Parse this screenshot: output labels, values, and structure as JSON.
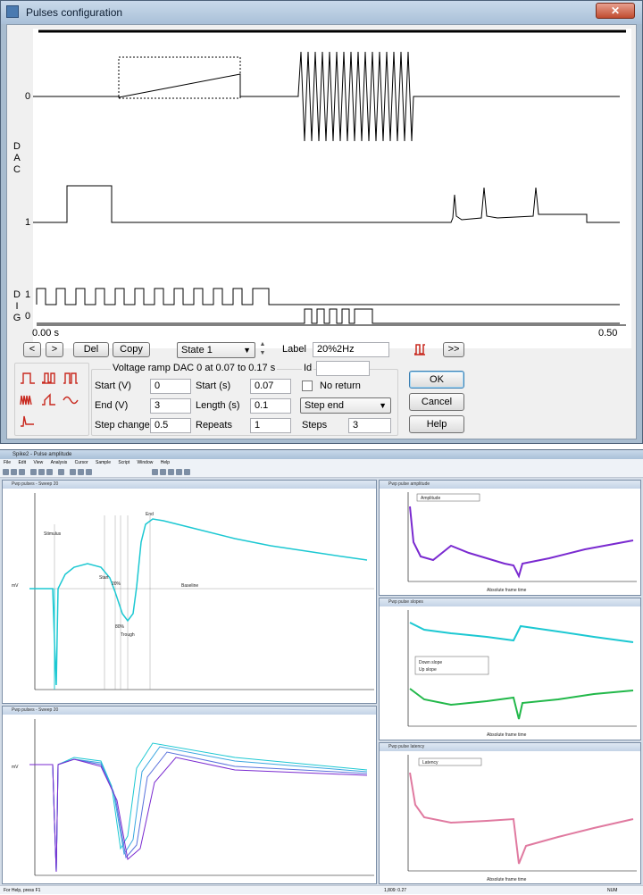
{
  "dialog": {
    "title": "Pulses configuration",
    "close_label": "✕",
    "graph": {
      "dac_axis_letters": [
        "D",
        "A",
        "C"
      ],
      "dig_axis_letters": [
        "D",
        "I",
        "G"
      ],
      "dac0_label": "0",
      "dac1_label": "1",
      "dig1_label": "1",
      "dig0_label": "0",
      "time_start": "0.00 s",
      "time_end": "0.50"
    },
    "nav": {
      "prev_label": "<",
      "next_label": ">",
      "del_label": "Del",
      "copy_label": "Copy",
      "state_value": "State 1",
      "label_caption": "Label",
      "label_value": "20%2Hz",
      "more_label": ">>"
    },
    "description": "Voltage ramp DAC 0 at 0.07 to 0.17 s",
    "id_caption": "Id",
    "id_value": "",
    "params": {
      "start_v_label": "Start (V)",
      "start_v_value": "0",
      "end_v_label": "End (V)",
      "end_v_value": "3",
      "step_change_label": "Step change",
      "step_change_value": "0.5",
      "start_s_label": "Start (s)",
      "start_s_value": "0.07",
      "length_s_label": "Length (s)",
      "length_s_value": "0.1",
      "repeats_label": "Repeats",
      "repeats_value": "1",
      "no_return_label": "No return",
      "step_mode_value": "Step end",
      "steps_label": "Steps",
      "steps_value": "3"
    },
    "buttons": {
      "ok": "OK",
      "cancel": "Cancel",
      "help": "Help"
    },
    "colors": {
      "accent_red": "#c8281e"
    }
  },
  "app": {
    "title": "Spike2 - Pulse amplitude",
    "menu": [
      "File",
      "Edit",
      "View",
      "Analysis",
      "Cursor",
      "Sample",
      "Script",
      "Window",
      "Help"
    ],
    "windows": {
      "sweep_top_title": "Pwp pulses - Sweep 20",
      "sweep_bottom_title": "Pwp pulses - Sweep 20",
      "amplitude_title": "Pwp pulse amplitude",
      "slopes_title": "Pwp pulse slopes",
      "latency_title": "Pwp pulse latency"
    },
    "annotations": {
      "stimulus": "Stimulus",
      "start": "Start",
      "p20": "20%",
      "p80": "80%",
      "trough": "Trough",
      "end": "End",
      "baseline": "Baseline"
    },
    "legends": {
      "amplitude": "Amplitude",
      "down_slope": "Down slope",
      "up_slope": "Up slope",
      "latency": "Latency"
    },
    "axis": {
      "absolute_frame_time": "Absolute frame time",
      "mV": "mV"
    },
    "status": {
      "left": "For Help, press F1",
      "middle": "1,809: 0.27",
      "right": "NUM"
    },
    "colors": {
      "cyan": "#1cc8d2",
      "purple": "#7a2ad0",
      "green": "#22b84a",
      "pink": "#e07aa0"
    }
  }
}
